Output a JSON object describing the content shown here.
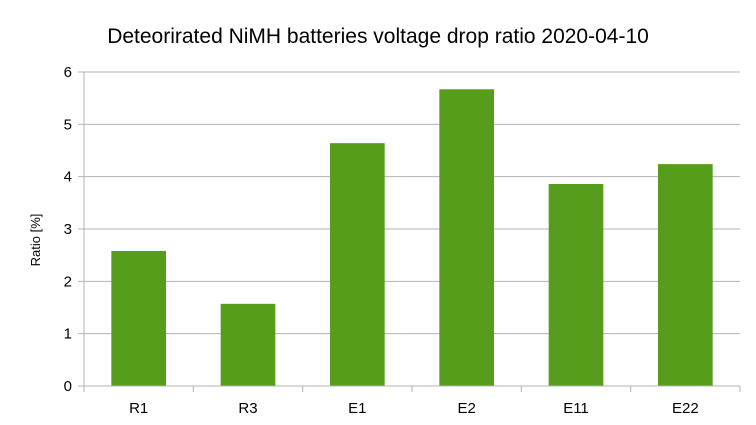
{
  "chart_data": {
    "type": "bar",
    "title": "Deteorirated NiMH batteries voltage drop ratio 2020-04-10",
    "xlabel": "",
    "ylabel": "Ratio [%]",
    "categories": [
      "R1",
      "R3",
      "E1",
      "E2",
      "E11",
      "E22"
    ],
    "values": [
      2.58,
      1.57,
      4.64,
      5.67,
      3.86,
      4.24
    ],
    "ylim": [
      0,
      6
    ],
    "yticks": [
      "0",
      "1",
      "2",
      "3",
      "4",
      "5",
      "6"
    ],
    "grid": true,
    "legend": "none",
    "bar_color": "#579d1c"
  }
}
